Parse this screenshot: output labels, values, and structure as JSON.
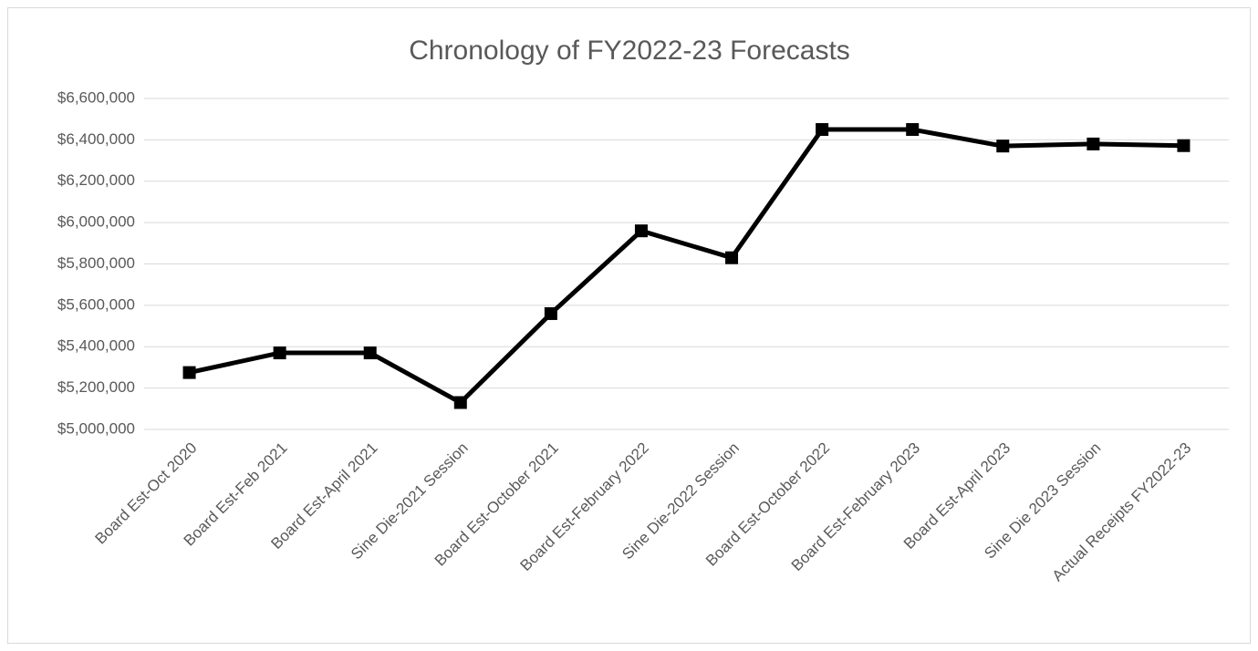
{
  "chart_data": {
    "type": "line",
    "title": "Chronology of FY2022-23 Forecasts",
    "categories": [
      "Board Est-Oct 2020",
      "Board Est-Feb 2021",
      "Board Est-April 2021",
      "Sine Die-2021 Session",
      "Board Est-October 2021",
      "Board Est-February 2022",
      "Sine Die-2022 Session",
      "Board Est-October 2022",
      "Board Est-February 2023",
      "Board Est-April 2023",
      "Sine Die 2023 Session",
      "Actual Receipts FY2022-23"
    ],
    "values": [
      5275000,
      5370000,
      5370000,
      5130000,
      5560000,
      5960000,
      5830000,
      6450000,
      6450000,
      6370000,
      6380000,
      6372000
    ],
    "color": "#000000",
    "ylim": [
      5000000,
      6600000
    ],
    "yticks": [
      {
        "value": 5000000,
        "label": "$5,000,000"
      },
      {
        "value": 5200000,
        "label": "$5,200,000"
      },
      {
        "value": 5400000,
        "label": "$5,400,000"
      },
      {
        "value": 5600000,
        "label": "$5,600,000"
      },
      {
        "value": 5800000,
        "label": "$5,800,000"
      },
      {
        "value": 6000000,
        "label": "$6,000,000"
      },
      {
        "value": 6200000,
        "label": "$6,200,000"
      },
      {
        "value": 6400000,
        "label": "$6,400,000"
      },
      {
        "value": 6600000,
        "label": "$6,600,000"
      }
    ],
    "grid": true
  }
}
